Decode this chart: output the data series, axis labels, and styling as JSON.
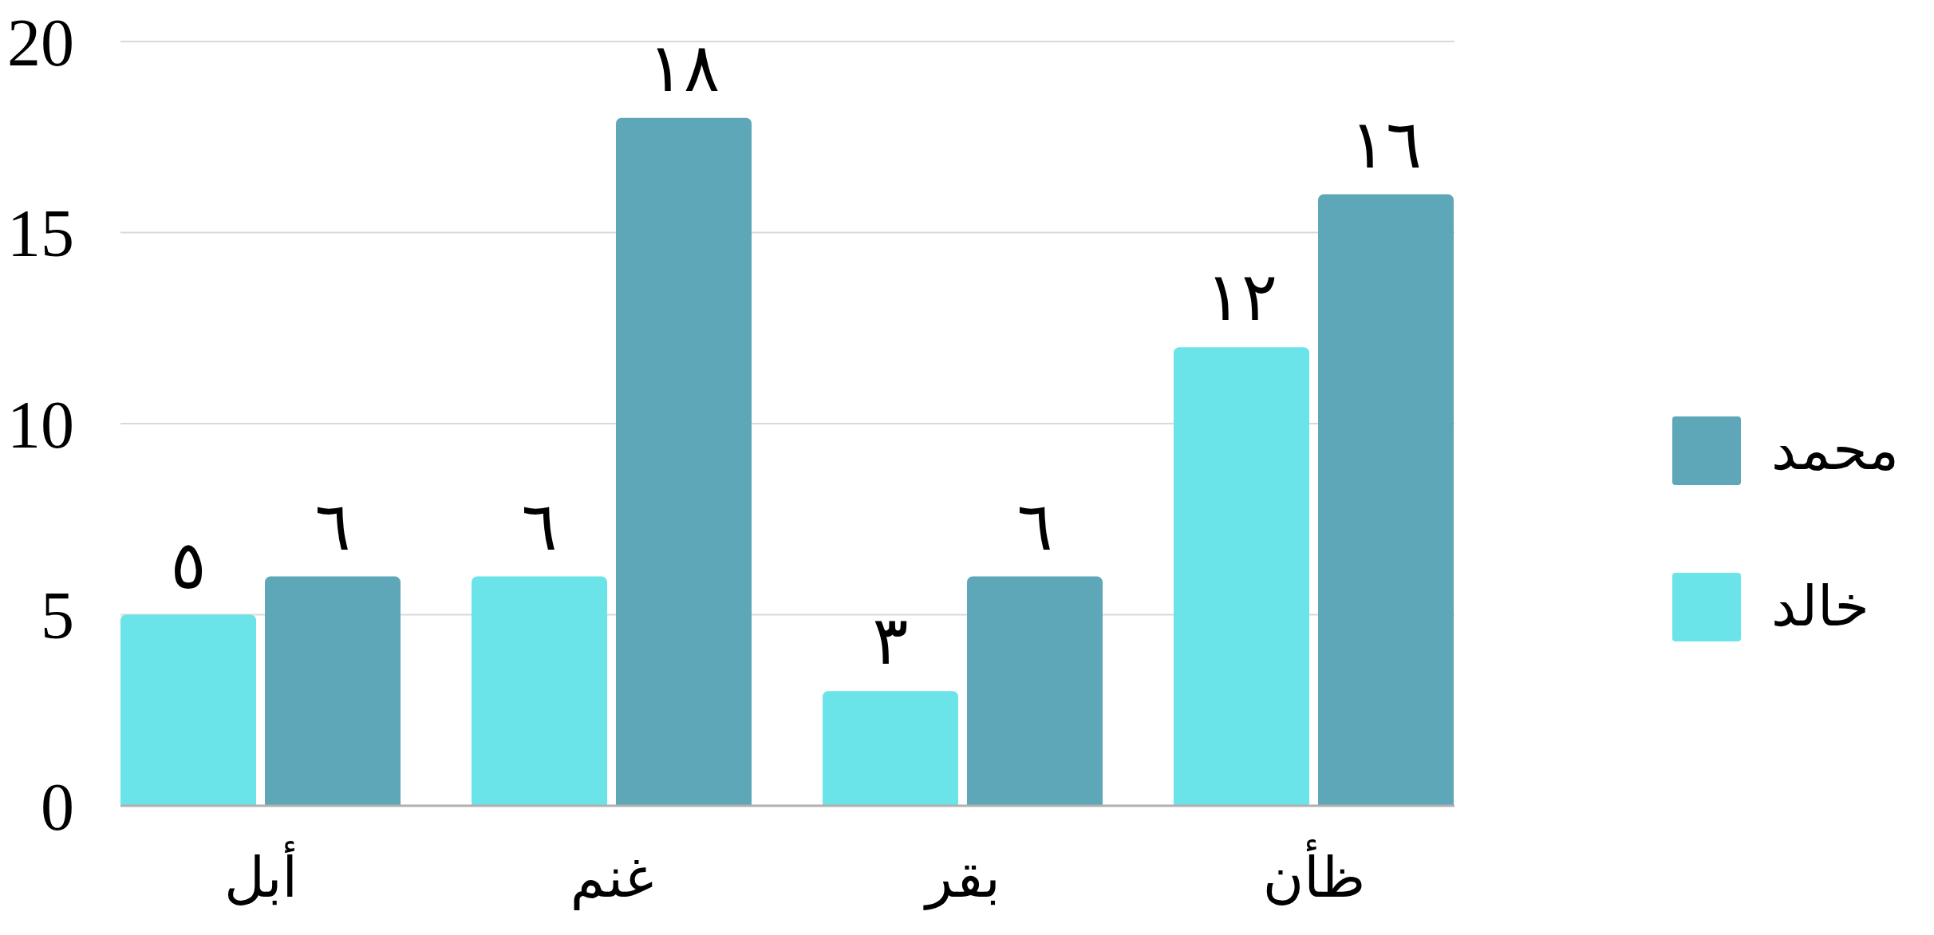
{
  "chart_data": {
    "type": "bar",
    "categories": [
      "أبل",
      "غنم",
      "بقر",
      "ظأن"
    ],
    "series": [
      {
        "name": "خالد",
        "color": "#6ae4e8",
        "values": [
          5,
          6,
          3,
          12
        ],
        "value_labels": [
          "٥",
          "٦",
          "٣",
          "١٢"
        ]
      },
      {
        "name": "محمد",
        "color": "#5da7b8",
        "values": [
          6,
          18,
          6,
          16
        ],
        "value_labels": [
          "٦",
          "١٨",
          "٦",
          "١٦"
        ]
      }
    ],
    "ylim": [
      0,
      20
    ],
    "yticks": [
      0,
      5,
      10,
      15,
      20
    ],
    "grid": "y",
    "legend": "right"
  }
}
